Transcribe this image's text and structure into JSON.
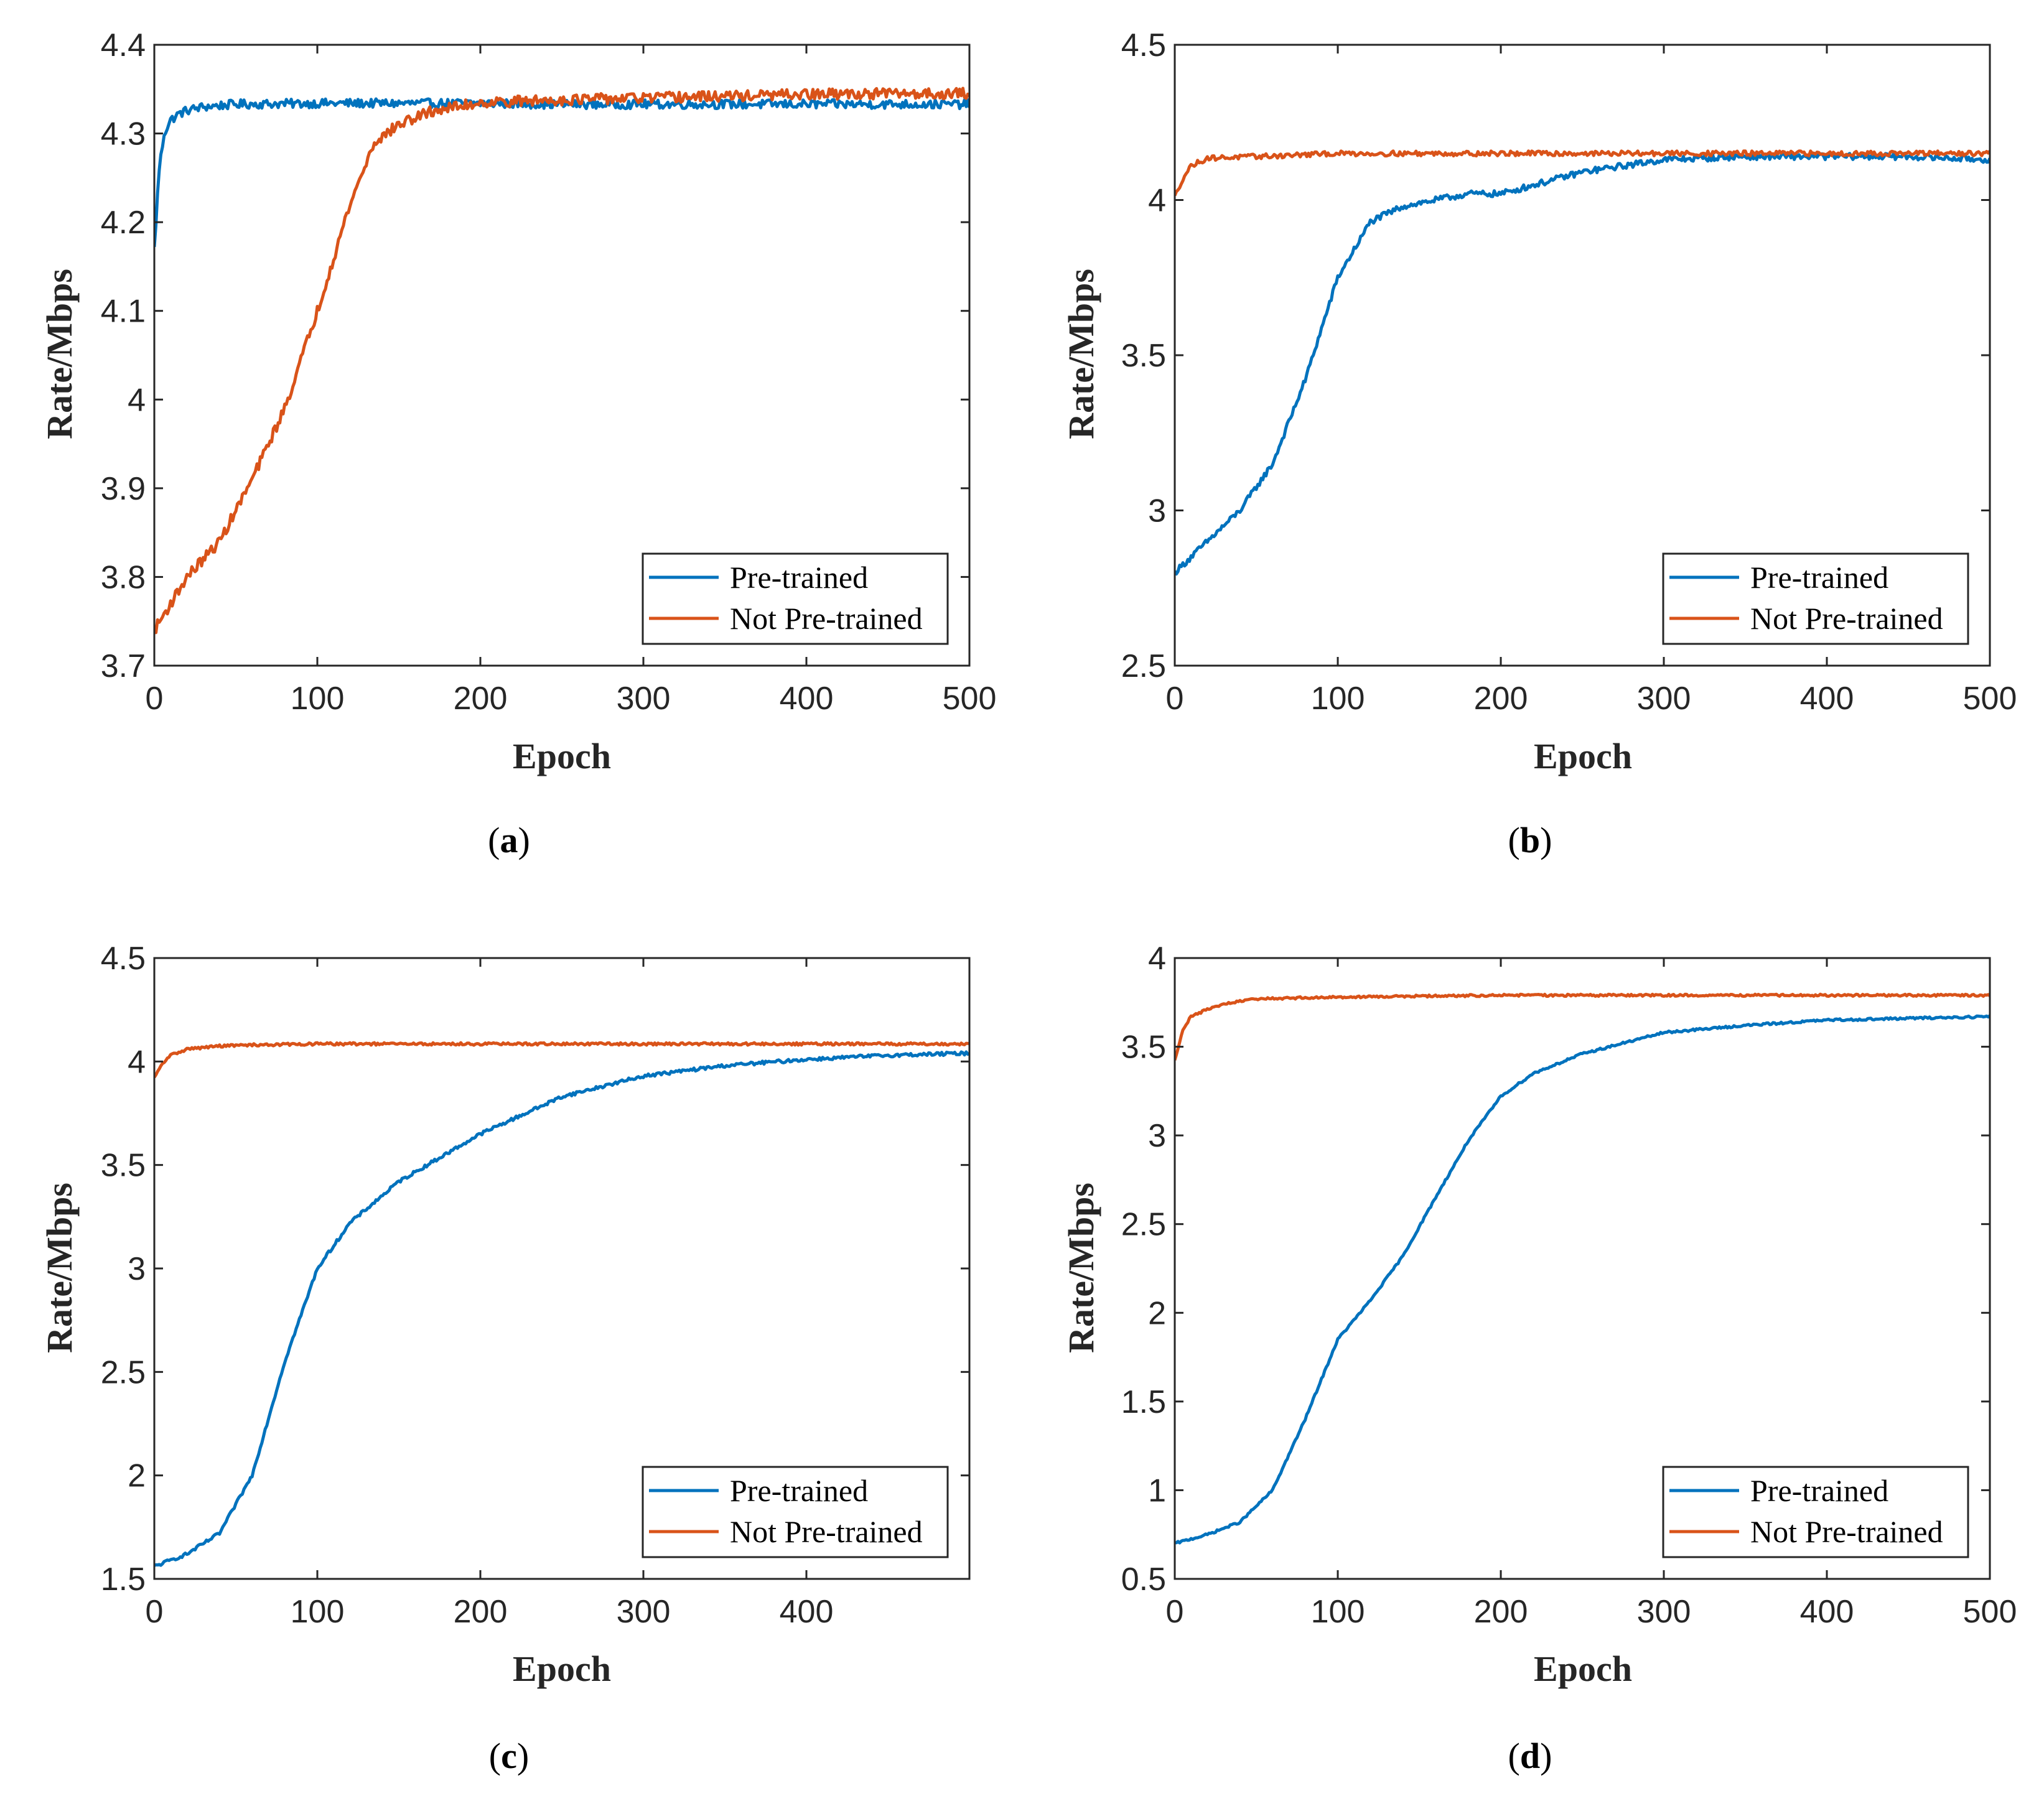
{
  "colors": {
    "pretrained": "#0072BD",
    "not_pretrained": "#D95319",
    "axis": "#262626"
  },
  "chart_data": [
    {
      "type": "line",
      "panel": "a",
      "caption": "a",
      "xlabel": "Epoch",
      "ylabel": "Rate/Mbps",
      "xlim": [
        0,
        500
      ],
      "ylim": [
        3.7,
        4.4
      ],
      "xticks": [
        0,
        100,
        200,
        300,
        400,
        500
      ],
      "xtick_labels": [
        "0",
        "100",
        "200",
        "300",
        "400",
        "500"
      ],
      "yticks": [
        3.7,
        3.8,
        3.9,
        4.0,
        4.1,
        4.2,
        4.3,
        4.4
      ],
      "ytick_labels": [
        "3.7",
        "3.8",
        "3.9",
        "4",
        "4.1",
        "4.2",
        "4.3",
        "4.4"
      ],
      "legend": "bottom-right",
      "series": [
        {
          "name": "Pre-trained",
          "noise": 0.005,
          "x": [
            0,
            3,
            6,
            10,
            15,
            20,
            30,
            50,
            100,
            150,
            200,
            250,
            300,
            350,
            400,
            450,
            500
          ],
          "y": [
            4.17,
            4.26,
            4.3,
            4.315,
            4.322,
            4.326,
            4.33,
            4.333,
            4.334,
            4.334,
            4.334,
            4.333,
            4.333,
            4.333,
            4.333,
            4.333,
            4.333
          ]
        },
        {
          "name": "Not Pre-trained",
          "noise": 0.006,
          "x": [
            0,
            10,
            20,
            40,
            60,
            80,
            100,
            120,
            135,
            150,
            170,
            200,
            250,
            300,
            350,
            400,
            450,
            500
          ],
          "y": [
            3.74,
            3.77,
            3.8,
            3.84,
            3.91,
            3.99,
            4.1,
            4.22,
            4.29,
            4.31,
            4.325,
            4.335,
            4.338,
            4.34,
            4.342,
            4.344,
            4.345,
            4.345
          ]
        }
      ]
    },
    {
      "type": "line",
      "panel": "b",
      "caption": "b",
      "xlabel": "Epoch",
      "ylabel": "Rate/Mbps",
      "xlim": [
        0,
        500
      ],
      "ylim": [
        2.5,
        4.5
      ],
      "xticks": [
        0,
        100,
        200,
        300,
        400,
        500
      ],
      "xtick_labels": [
        "0",
        "100",
        "200",
        "300",
        "400",
        "500"
      ],
      "yticks": [
        2.5,
        3.0,
        3.5,
        4.0,
        4.5
      ],
      "ytick_labels": [
        "2.5",
        "3",
        "3.5",
        "4",
        "4.5"
      ],
      "legend": "bottom-right",
      "series": [
        {
          "name": "Pre-trained",
          "noise": 0.01,
          "x": [
            0,
            20,
            40,
            60,
            80,
            100,
            120,
            140,
            160,
            180,
            200,
            250,
            300,
            350,
            400,
            450,
            500
          ],
          "y": [
            2.8,
            2.9,
            3.0,
            3.15,
            3.42,
            3.75,
            3.93,
            3.98,
            4.0,
            4.02,
            4.02,
            4.09,
            4.13,
            4.14,
            4.14,
            4.14,
            4.13
          ]
        },
        {
          "name": "Not Pre-trained",
          "noise": 0.008,
          "x": [
            0,
            5,
            10,
            20,
            50,
            100,
            200,
            300,
            400,
            500
          ],
          "y": [
            4.01,
            4.07,
            4.11,
            4.135,
            4.14,
            4.15,
            4.15,
            4.15,
            4.15,
            4.15
          ]
        }
      ]
    },
    {
      "type": "line",
      "panel": "c",
      "caption": "c",
      "xlabel": "Epoch",
      "ylabel": "Rate/Mbps",
      "xlim": [
        0,
        500
      ],
      "ylim": [
        1.5,
        4.5
      ],
      "xticks": [
        0,
        100,
        200,
        300,
        400
      ],
      "xtick_labels": [
        "0",
        "100",
        "200",
        "300",
        "400"
      ],
      "yticks": [
        1.5,
        2.0,
        2.5,
        3.0,
        3.5,
        4.0,
        4.5
      ],
      "ytick_labels": [
        "1.5",
        "2",
        "2.5",
        "3",
        "3.5",
        "4",
        "4.5"
      ],
      "legend": "bottom-right",
      "series": [
        {
          "name": "Pre-trained",
          "noise": 0.008,
          "x": [
            0,
            20,
            40,
            60,
            80,
            100,
            120,
            150,
            200,
            250,
            300,
            350,
            400,
            450,
            500
          ],
          "y": [
            1.56,
            1.62,
            1.72,
            2.0,
            2.55,
            3.0,
            3.22,
            3.42,
            3.65,
            3.83,
            3.93,
            3.98,
            4.01,
            4.03,
            4.04
          ]
        },
        {
          "name": "Not Pre-trained",
          "noise": 0.006,
          "x": [
            0,
            5,
            10,
            20,
            40,
            60,
            100,
            200,
            300,
            400,
            500
          ],
          "y": [
            3.92,
            3.99,
            4.03,
            4.06,
            4.075,
            4.08,
            4.085,
            4.085,
            4.085,
            4.085,
            4.085
          ]
        }
      ]
    },
    {
      "type": "line",
      "panel": "d",
      "caption": "d",
      "xlabel": "Epoch",
      "ylabel": "Rate/Mbps",
      "xlim": [
        0,
        500
      ],
      "ylim": [
        0.5,
        4.0
      ],
      "xticks": [
        0,
        100,
        200,
        300,
        400,
        500
      ],
      "xtick_labels": [
        "0",
        "100",
        "200",
        "300",
        "400",
        "500"
      ],
      "yticks": [
        0.5,
        1.0,
        1.5,
        2.0,
        2.5,
        3.0,
        3.5,
        4.0
      ],
      "ytick_labels": [
        "0.5",
        "1",
        "1.5",
        "2",
        "2.5",
        "3",
        "3.5",
        "4"
      ],
      "legend": "bottom-right",
      "series": [
        {
          "name": "Pre-trained",
          "noise": 0.006,
          "x": [
            0,
            20,
            40,
            60,
            80,
            100,
            120,
            140,
            160,
            180,
            200,
            220,
            250,
            300,
            350,
            400,
            450,
            500
          ],
          "y": [
            0.7,
            0.75,
            0.82,
            1.0,
            1.4,
            1.85,
            2.07,
            2.32,
            2.65,
            2.97,
            3.22,
            3.35,
            3.46,
            3.58,
            3.62,
            3.65,
            3.66,
            3.67
          ]
        },
        {
          "name": "Not Pre-trained",
          "noise": 0.006,
          "x": [
            0,
            5,
            10,
            20,
            30,
            50,
            100,
            200,
            300,
            400,
            500
          ],
          "y": [
            3.42,
            3.6,
            3.67,
            3.71,
            3.74,
            3.77,
            3.78,
            3.79,
            3.79,
            3.79,
            3.79
          ]
        }
      ]
    }
  ]
}
